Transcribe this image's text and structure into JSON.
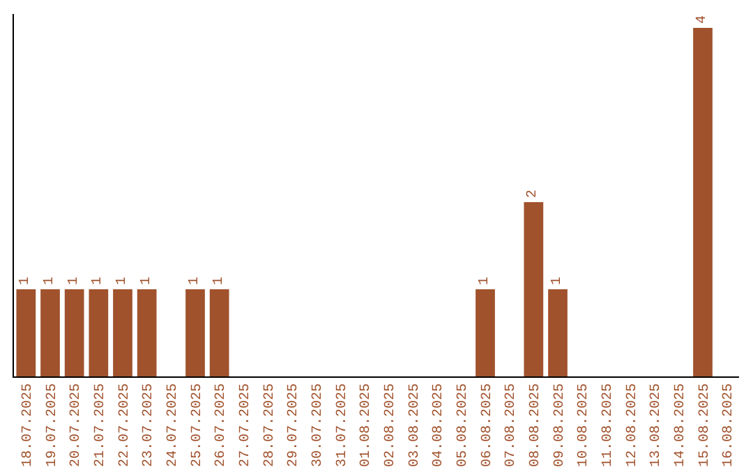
{
  "chart_data": {
    "type": "bar",
    "categories": [
      "18.07.2025",
      "19.07.2025",
      "20.07.2025",
      "21.07.2025",
      "22.07.2025",
      "23.07.2025",
      "24.07.2025",
      "25.07.2025",
      "26.07.2025",
      "27.07.2025",
      "28.07.2025",
      "29.07.2025",
      "30.07.2025",
      "31.07.2025",
      "01.08.2025",
      "02.08.2025",
      "03.08.2025",
      "04.08.2025",
      "05.08.2025",
      "06.08.2025",
      "07.08.2025",
      "08.08.2025",
      "09.08.2025",
      "10.08.2025",
      "11.08.2025",
      "12.08.2025",
      "13.08.2025",
      "14.08.2025",
      "15.08.2025",
      "16.08.2025"
    ],
    "values": [
      1,
      1,
      1,
      1,
      1,
      1,
      0,
      1,
      1,
      0,
      0,
      0,
      0,
      0,
      0,
      0,
      0,
      0,
      0,
      1,
      0,
      2,
      1,
      0,
      0,
      0,
      0,
      0,
      4,
      0
    ],
    "value_labels": [
      "1",
      "1",
      "1",
      "1",
      "1",
      "1",
      null,
      "1",
      "1",
      null,
      null,
      null,
      null,
      null,
      null,
      null,
      null,
      null,
      null,
      "1",
      null,
      "2",
      "1",
      null,
      null,
      null,
      null,
      null,
      "4",
      null
    ],
    "color": "#a0522d",
    "grid": false,
    "legend": false
  }
}
